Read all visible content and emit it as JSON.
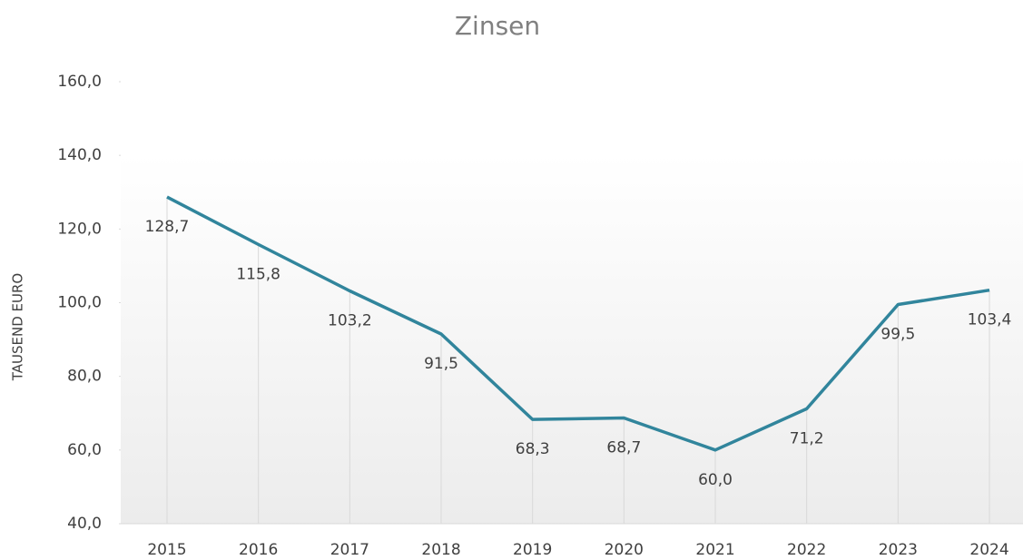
{
  "chart_data": {
    "type": "line",
    "title": "Zinsen",
    "y_label": "TAUSEND EURO",
    "categories": [
      "2015",
      "2016",
      "2017",
      "2018",
      "2019",
      "2020",
      "2021",
      "2022",
      "2023",
      "2024"
    ],
    "series": [
      {
        "name": "Zinsen",
        "color": "#31859c",
        "values": [
          128.7,
          115.8,
          103.2,
          91.5,
          68.3,
          68.7,
          60.0,
          71.2,
          99.5,
          103.4
        ],
        "value_labels": [
          "128,7",
          "115,8",
          "103,2",
          "91,5",
          "68,3",
          "68,7",
          "60,0",
          "71,2",
          "99,5",
          "103,4"
        ]
      }
    ],
    "ylim": [
      40,
      160
    ],
    "yticks": [
      {
        "value": 40,
        "label": "40,0"
      },
      {
        "value": 60,
        "label": "60,0"
      },
      {
        "value": 80,
        "label": "80,0"
      },
      {
        "value": 100,
        "label": "100,0"
      },
      {
        "value": 120,
        "label": "120,0"
      },
      {
        "value": 140,
        "label": "140,0"
      },
      {
        "value": 160,
        "label": "160,0"
      }
    ],
    "drop_lines": true
  }
}
